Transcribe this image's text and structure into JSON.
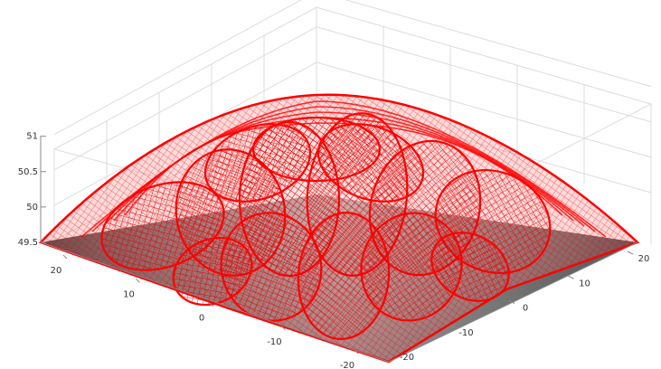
{
  "chart_data": {
    "type": "surface-3d",
    "title": "",
    "xlabel": "",
    "ylabel": "",
    "zlabel": "",
    "grid": true,
    "x_ticks": [
      "20",
      "10",
      "0",
      "-10",
      "-20"
    ],
    "y_ticks": [
      "20",
      "10",
      "0",
      "-10",
      "-20"
    ],
    "z_ticks": [
      "51",
      "50.5",
      "50",
      "49.5"
    ],
    "xlim": [
      -20,
      20
    ],
    "ylim": [
      -20,
      20
    ],
    "zlim": [
      49.5,
      51.2
    ],
    "surface": {
      "mesh_color": "#ff0000",
      "floor_color": "#7f7f7f",
      "base_level": 49.5,
      "peak_level": 51.05,
      "shape": "dome with overlapping petal-shaped mesh loops"
    }
  }
}
